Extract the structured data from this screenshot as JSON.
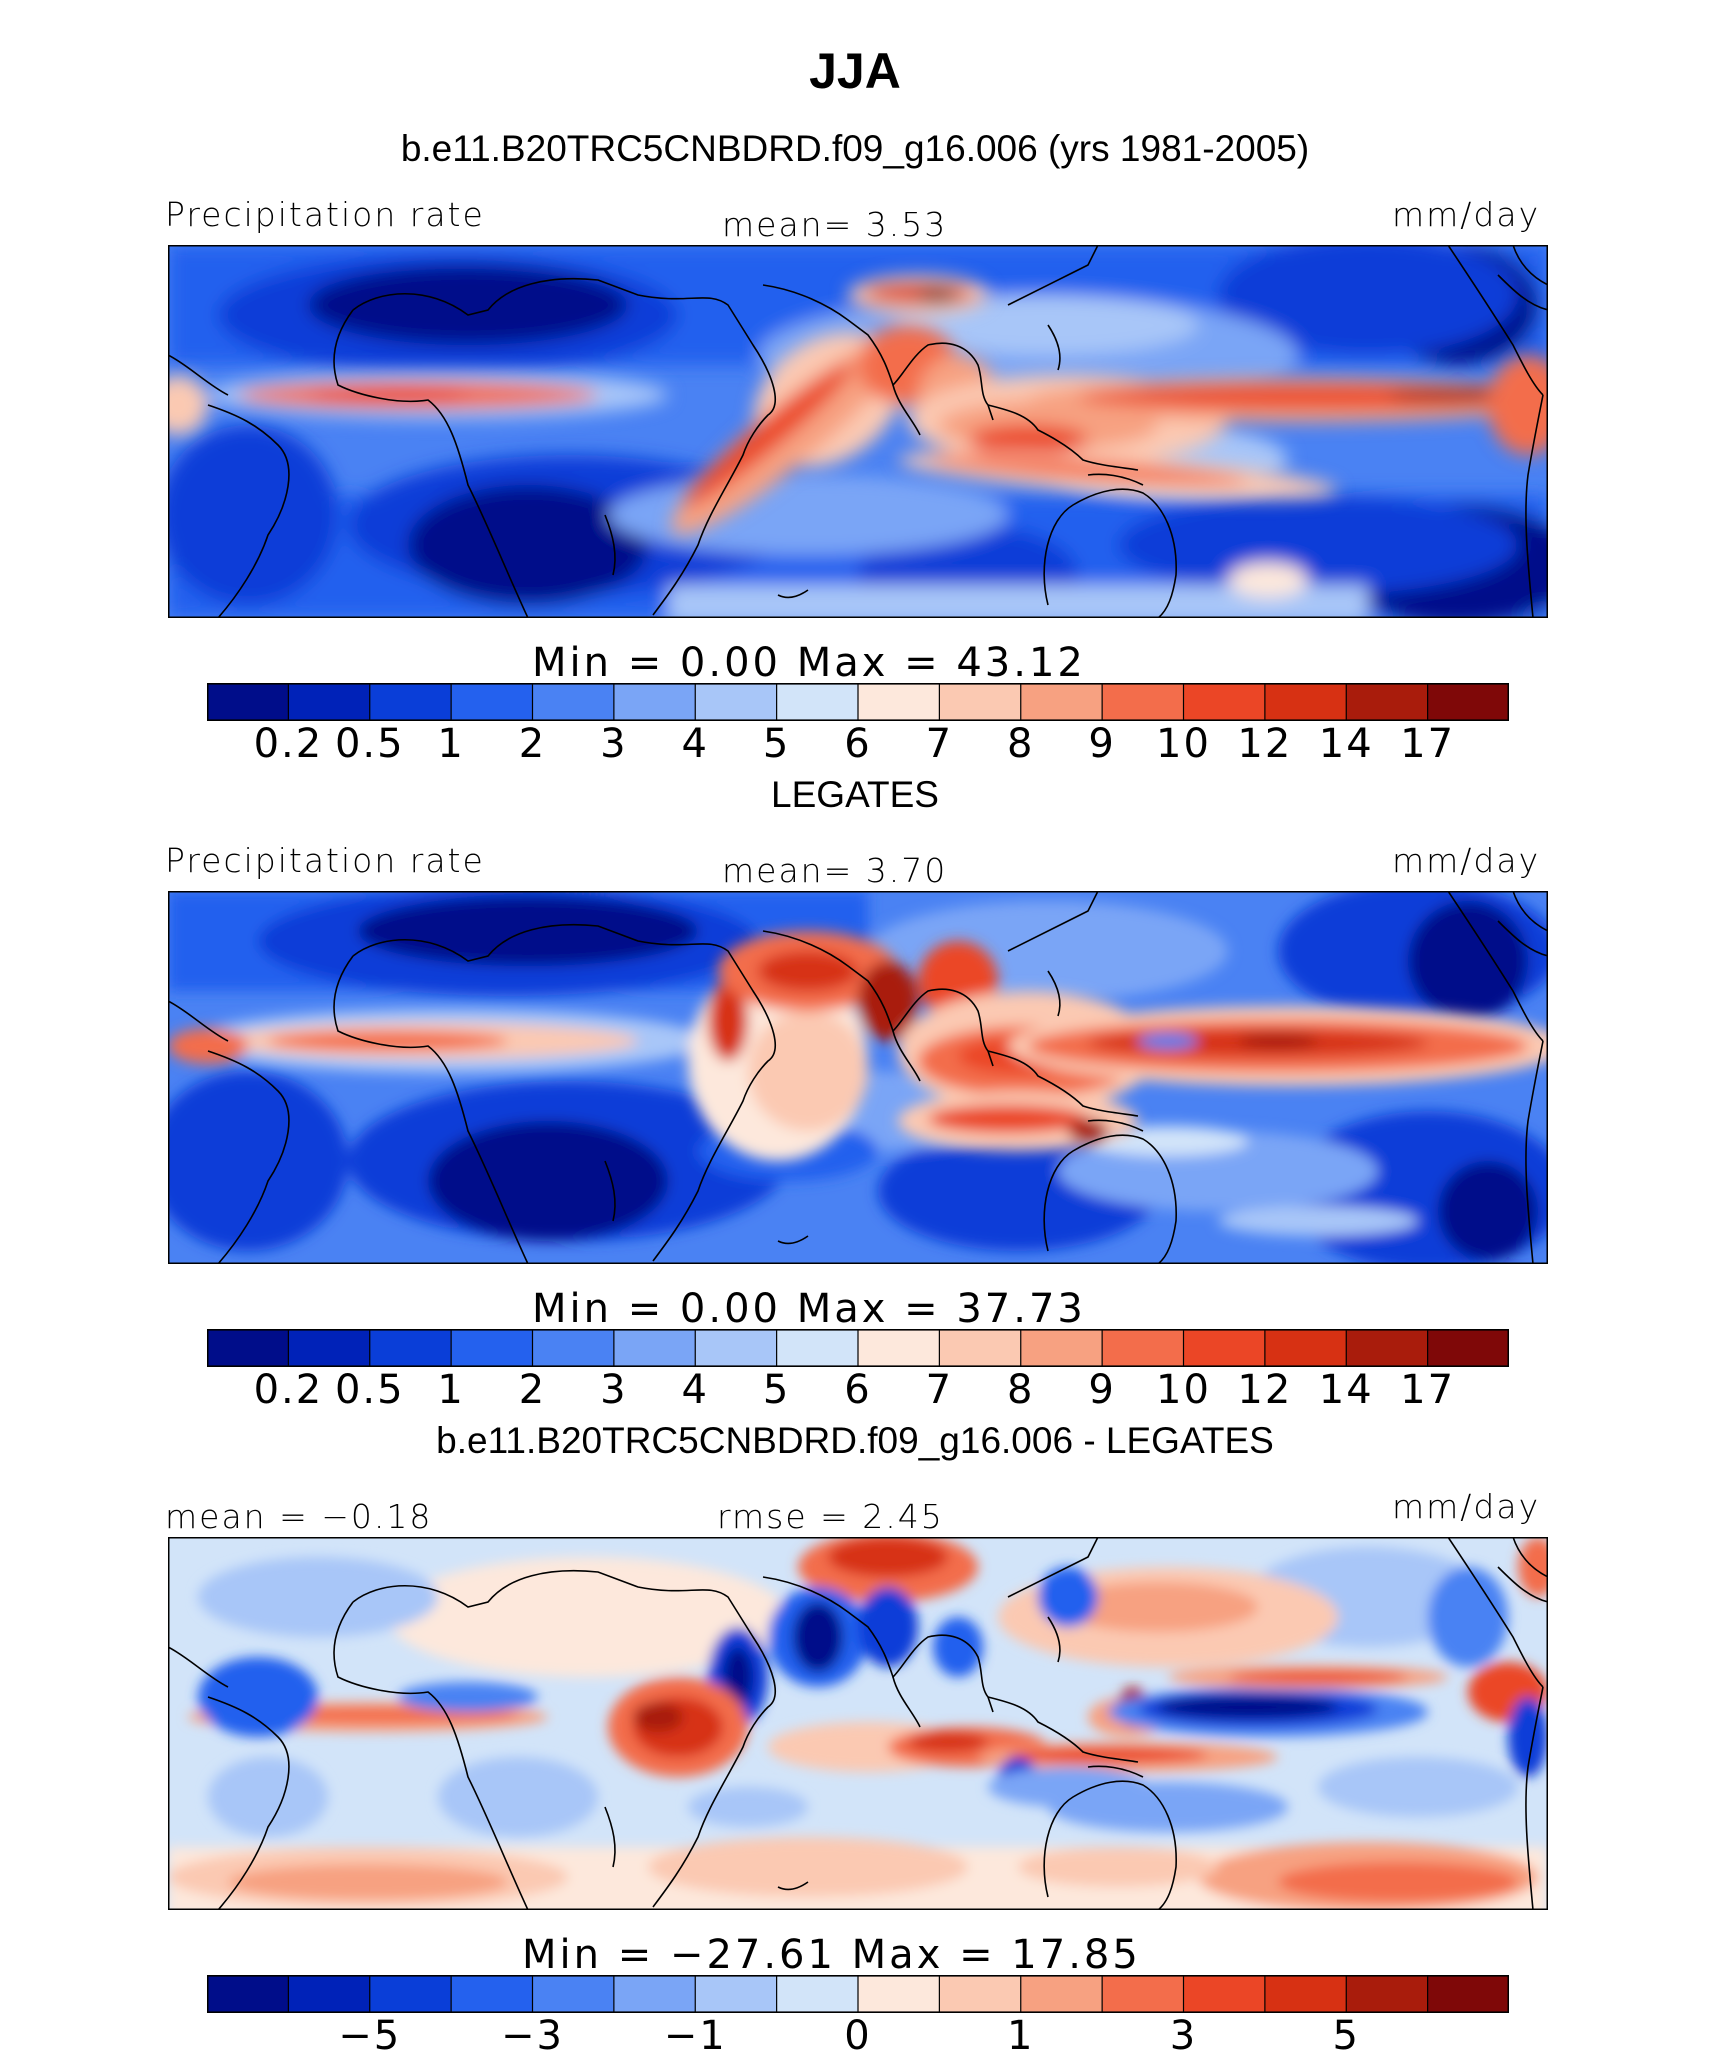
{
  "figure": {
    "title": "JJA",
    "panels": [
      {
        "heading": "b.e11.B20TRC5CNBDRD.f09_g16.006 (yrs 1981-2005)",
        "left_label": "Precipitation rate",
        "center_label": "mean=    3.53",
        "right_label": "mm/day",
        "minmax": "Min  =    0.00  Max  =   43.12",
        "ticks": [
          "0.2",
          "0.5",
          "1",
          "2",
          "3",
          "4",
          "5",
          "6",
          "7",
          "8",
          "9",
          "10",
          "12",
          "14",
          "17"
        ]
      },
      {
        "heading": "LEGATES",
        "left_label": "Precipitation rate",
        "center_label": "mean=    3.70",
        "right_label": "mm/day",
        "minmax": "Min  =    0.00  Max  =   37.73",
        "ticks": [
          "0.2",
          "0.5",
          "1",
          "2",
          "3",
          "4",
          "5",
          "6",
          "7",
          "8",
          "9",
          "10",
          "12",
          "14",
          "17"
        ]
      },
      {
        "heading": "b.e11.B20TRC5CNBDRD.f09_g16.006 - LEGATES",
        "left_label": "mean  =   −0.18",
        "center_label": "rmse  =    2.45",
        "right_label": "mm/day",
        "minmax": "Min  = −27.61  Max  =   17.85",
        "ticks": [
          "−5",
          "−3",
          "−1",
          "0",
          "1",
          "3",
          "5"
        ]
      }
    ],
    "colorbar_colors": [
      "#000d8a",
      "#0022b8",
      "#0a3ed8",
      "#2461ee",
      "#4a82f3",
      "#7aa5f6",
      "#a8c6f8",
      "#d2e4f9",
      "#fde8dc",
      "#fbc9b2",
      "#f7a181",
      "#f36d4b",
      "#eb4626",
      "#d73113",
      "#a91c0c",
      "#7f0808"
    ]
  }
}
